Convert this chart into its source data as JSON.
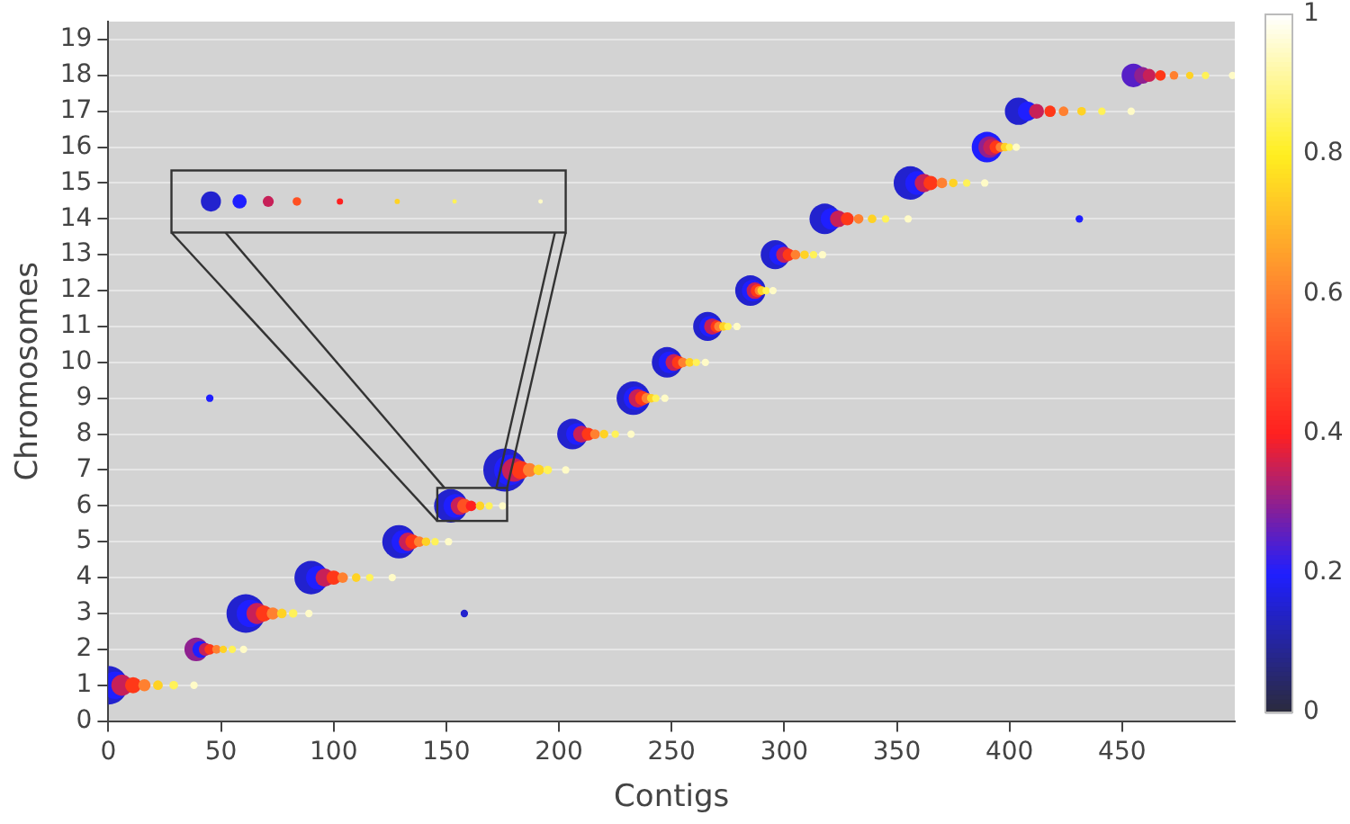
{
  "chart_data": {
    "type": "bubble",
    "xlabel": "Contigs",
    "ylabel": "Chromosomes",
    "xlim": [
      0,
      500
    ],
    "xticks": [
      0,
      50,
      100,
      150,
      200,
      250,
      300,
      350,
      400,
      450
    ],
    "ylim": [
      0,
      19.5
    ],
    "yticks": [
      0,
      1,
      2,
      3,
      4,
      5,
      6,
      7,
      8,
      9,
      10,
      11,
      12,
      13,
      14,
      15,
      16,
      17,
      18,
      19
    ],
    "clim": [
      0,
      1
    ],
    "cticks": [
      0,
      0.2,
      0.4,
      0.6,
      0.8,
      1
    ],
    "grid": "y",
    "legend": false,
    "series": [
      {
        "x": [
          0,
          3,
          6,
          11,
          16,
          22,
          29,
          38
        ],
        "values": [
          1,
          1,
          1,
          1,
          1,
          1,
          1,
          1
        ],
        "sizes": [
          0.8,
          0.4,
          0.24,
          0.14,
          0.08,
          0.05,
          0.04,
          0.03
        ],
        "colors": [
          "#2222ce",
          "#1f1fff",
          "#c72058",
          "#ff3818",
          "#ff8030",
          "#ffd224",
          "#fff258",
          "#fffbc7"
        ]
      },
      {
        "x": [
          39,
          41,
          43,
          45,
          48,
          51,
          55,
          60
        ],
        "values": [
          2,
          2,
          2,
          2,
          2,
          2,
          2,
          2
        ],
        "sizes": [
          0.3,
          0.15,
          0.09,
          0.06,
          0.04,
          0.03,
          0.03,
          0.03
        ],
        "colors": [
          "#8f2090",
          "#1f1fff",
          "#c72058",
          "#ff3818",
          "#ff8030",
          "#ffd224",
          "#fff258",
          "#fffbc7"
        ]
      },
      {
        "x": [
          61,
          63,
          66,
          69,
          73,
          77,
          82,
          89
        ],
        "values": [
          3,
          3,
          3,
          3,
          3,
          3,
          3,
          3
        ],
        "sizes": [
          0.8,
          0.4,
          0.24,
          0.14,
          0.08,
          0.05,
          0.04,
          0.03
        ],
        "colors": [
          "#2222ce",
          "#1f1fff",
          "#c72058",
          "#ff3818",
          "#ff8030",
          "#ffd224",
          "#fff258",
          "#fffbc7"
        ]
      },
      {
        "x": [
          90,
          93,
          96,
          100,
          104,
          110,
          116,
          126
        ],
        "values": [
          4,
          4,
          4,
          4,
          4,
          4,
          4,
          4
        ],
        "sizes": [
          0.6,
          0.3,
          0.18,
          0.11,
          0.06,
          0.04,
          0.03,
          0.03
        ],
        "colors": [
          "#2222ce",
          "#1f1fff",
          "#c72058",
          "#ff3818",
          "#ff8030",
          "#ffd224",
          "#fff258",
          "#fffbc7"
        ]
      },
      {
        "x": [
          129,
          131,
          133,
          135,
          138,
          141,
          145,
          151
        ],
        "values": [
          5,
          5,
          5,
          5,
          5,
          5,
          5,
          5
        ],
        "sizes": [
          0.6,
          0.3,
          0.18,
          0.11,
          0.06,
          0.04,
          0.03,
          0.03
        ],
        "colors": [
          "#2222ce",
          "#1f1fff",
          "#c72058",
          "#ff3818",
          "#ff8030",
          "#ffd224",
          "#fff258",
          "#fffbc7"
        ]
      },
      {
        "x": [
          152,
          154,
          156,
          158,
          161,
          165,
          169,
          175
        ],
        "values": [
          6,
          6,
          6,
          6,
          6,
          6,
          6,
          6
        ],
        "sizes": [
          0.6,
          0.3,
          0.18,
          0.11,
          0.06,
          0.04,
          0.03,
          0.03
        ],
        "colors": [
          "#2222ce",
          "#1f1fff",
          "#c72058",
          "#ff5022",
          "#ff2020",
          "#ffd224",
          "#fff258",
          "#fffbc7"
        ]
      },
      {
        "x": [
          176,
          178,
          180,
          183,
          187,
          191,
          195,
          203
        ],
        "values": [
          7,
          7,
          7,
          7,
          7,
          7,
          7,
          7
        ],
        "sizes": [
          1,
          0.5,
          0.3,
          0.18,
          0.1,
          0.06,
          0.04,
          0.03
        ],
        "colors": [
          "#2222ce",
          "#1f1fff",
          "#c72058",
          "#ff3818",
          "#ff8030",
          "#ffd224",
          "#fff258",
          "#fffbc7"
        ]
      },
      {
        "x": [
          206,
          208,
          210,
          213,
          216,
          220,
          225,
          232
        ],
        "values": [
          8,
          8,
          8,
          8,
          8,
          8,
          8,
          8
        ],
        "sizes": [
          0.5,
          0.25,
          0.15,
          0.09,
          0.05,
          0.04,
          0.03,
          0.03
        ],
        "colors": [
          "#2222ce",
          "#1f1fff",
          "#c72058",
          "#ff3818",
          "#ff8030",
          "#ffd224",
          "#fff258",
          "#fffbc7"
        ]
      },
      {
        "x": [
          233,
          234,
          235,
          237,
          239,
          241,
          243,
          247
        ],
        "values": [
          9,
          9,
          9,
          9,
          9,
          9,
          9,
          9
        ],
        "sizes": [
          0.6,
          0.3,
          0.18,
          0.11,
          0.06,
          0.04,
          0.03,
          0.03
        ],
        "colors": [
          "#2222ce",
          "#1f1fff",
          "#c72058",
          "#ff3818",
          "#ff8030",
          "#ffd224",
          "#fff258",
          "#fffbc7"
        ]
      },
      {
        "x": [
          248,
          249,
          251,
          253,
          255,
          258,
          261,
          265
        ],
        "values": [
          10,
          10,
          10,
          10,
          10,
          10,
          10,
          10
        ],
        "sizes": [
          0.5,
          0.25,
          0.15,
          0.09,
          0.05,
          0.04,
          0.03,
          0.03
        ],
        "colors": [
          "#2222ce",
          "#1f1fff",
          "#c72058",
          "#ff3818",
          "#ff8030",
          "#ffd224",
          "#fff258",
          "#fffbc7"
        ]
      },
      {
        "x": [
          266,
          267,
          268,
          270,
          271,
          273,
          275,
          279
        ],
        "values": [
          11,
          11,
          11,
          11,
          11,
          11,
          11,
          11
        ],
        "sizes": [
          0.45,
          0.23,
          0.14,
          0.08,
          0.05,
          0.04,
          0.03,
          0.03
        ],
        "colors": [
          "#2222ce",
          "#1f1fff",
          "#c72058",
          "#ff3818",
          "#ff8030",
          "#ffd224",
          "#fff258",
          "#fffbc7"
        ]
      },
      {
        "x": [
          285,
          286,
          287,
          288,
          289,
          290,
          292,
          295
        ],
        "values": [
          12,
          12,
          12,
          12,
          12,
          12,
          12,
          12
        ],
        "sizes": [
          0.5,
          0.25,
          0.15,
          0.09,
          0.05,
          0.04,
          0.03,
          0.03
        ],
        "colors": [
          "#2222ce",
          "#1f1fff",
          "#c72058",
          "#ff3818",
          "#ff8030",
          "#ffd224",
          "#fff258",
          "#fffbc7"
        ]
      },
      {
        "x": [
          296,
          298,
          300,
          302,
          305,
          309,
          313,
          317
        ],
        "values": [
          13,
          13,
          13,
          13,
          13,
          13,
          13,
          13
        ],
        "sizes": [
          0.45,
          0.23,
          0.14,
          0.08,
          0.05,
          0.04,
          0.03,
          0.03
        ],
        "colors": [
          "#2222ce",
          "#1f1fff",
          "#c72058",
          "#ff3818",
          "#ff8030",
          "#ffd224",
          "#fff258",
          "#fffbc7"
        ]
      },
      {
        "x": [
          318,
          321,
          324,
          328,
          333,
          339,
          345,
          355
        ],
        "values": [
          14,
          14,
          14,
          14,
          14,
          14,
          14,
          14
        ],
        "sizes": [
          0.5,
          0.25,
          0.15,
          0.09,
          0.05,
          0.04,
          0.03,
          0.03
        ],
        "colors": [
          "#2222ce",
          "#1f1fff",
          "#c72058",
          "#ff3818",
          "#ff8030",
          "#ffd224",
          "#fff258",
          "#fffbc7"
        ]
      },
      {
        "x": [
          356,
          359,
          362,
          365,
          370,
          375,
          381,
          389
        ],
        "values": [
          15,
          15,
          15,
          15,
          15,
          15,
          15,
          15
        ],
        "sizes": [
          0.6,
          0.3,
          0.18,
          0.11,
          0.06,
          0.04,
          0.03,
          0.03
        ],
        "colors": [
          "#2222ce",
          "#1f1fff",
          "#c72058",
          "#ff3818",
          "#ff8030",
          "#ffd224",
          "#fff258",
          "#fffbc7"
        ]
      },
      {
        "x": [
          390,
          391,
          392,
          394,
          396,
          398,
          400,
          403
        ],
        "values": [
          16,
          16,
          16,
          16,
          16,
          16,
          16,
          16
        ],
        "sizes": [
          0.5,
          0.25,
          0.15,
          0.09,
          0.05,
          0.04,
          0.03,
          0.03
        ],
        "colors": [
          "#1f1fff",
          "#8f2090",
          "#c72058",
          "#ff3818",
          "#ff8030",
          "#ffd224",
          "#fff258",
          "#fffbc7"
        ]
      },
      {
        "x": [
          404,
          408,
          412,
          418,
          424,
          432,
          441,
          454
        ],
        "values": [
          17,
          17,
          17,
          17,
          17,
          17,
          17,
          17
        ],
        "sizes": [
          0.4,
          0.2,
          0.12,
          0.07,
          0.05,
          0.04,
          0.03,
          0.03
        ],
        "colors": [
          "#2222ce",
          "#1f1fff",
          "#c72058",
          "#ff3818",
          "#ff8030",
          "#ffd224",
          "#fff258",
          "#fffbc7"
        ]
      },
      {
        "x": [
          455,
          459,
          462,
          467,
          473,
          480,
          487,
          499
        ],
        "values": [
          18,
          18,
          18,
          18,
          18,
          18,
          18,
          18
        ],
        "sizes": [
          0.3,
          0.15,
          0.09,
          0.06,
          0.04,
          0.03,
          0.03,
          0.03
        ],
        "colors": [
          "#571fc7",
          "#8f2090",
          "#c72058",
          "#ff3818",
          "#ff8030",
          "#ffd224",
          "#fff258",
          "#fffbc7"
        ]
      },
      {
        "x": [
          45,
          158,
          431
        ],
        "values": [
          9,
          3,
          14
        ],
        "sizes": [
          0.03,
          0.03,
          0.03
        ],
        "colors": [
          "#1f1fff",
          "#2222ce",
          "#1f1fff"
        ]
      }
    ]
  }
}
